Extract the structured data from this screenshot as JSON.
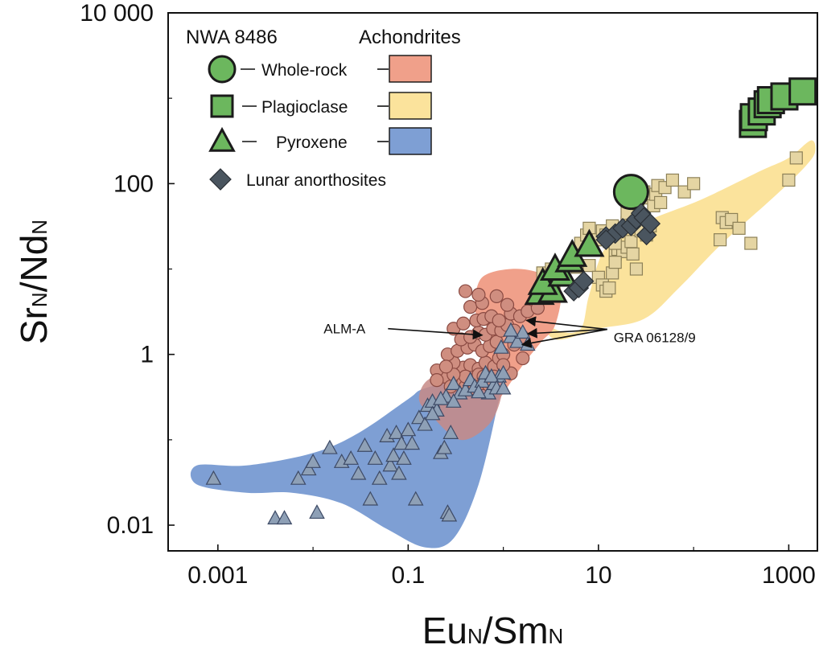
{
  "chart_data": {
    "type": "scatter",
    "x_scale": "log",
    "y_scale": "log",
    "xlim": [
      0.0003,
      2000
    ],
    "ylim": [
      0.005,
      10000
    ],
    "x_ticks": [
      0.001,
      0.1,
      10,
      1000
    ],
    "y_ticks": [
      0.01,
      1,
      100,
      10000
    ],
    "x_tick_labels": [
      "0.001",
      "0.1",
      "10",
      "1000"
    ],
    "y_tick_labels": [
      "0.01",
      "1",
      "100",
      "10 000"
    ],
    "xlabel": {
      "main1": "Eu",
      "sub1": "N",
      "sep": "/Sm",
      "sub2": "N"
    },
    "ylabel": {
      "main1": "Sr",
      "sub1": "N",
      "sep": "/Nd",
      "sub2": "N"
    },
    "legend": {
      "header_sample": "NWA 8486",
      "header_group": "Achondrites",
      "position": "top-left",
      "items": [
        {
          "label": "Whole-rock",
          "marker": "circle",
          "field_color": "#f0a08a"
        },
        {
          "label": "Plagioclase",
          "marker": "square",
          "field_color": "#fbe39c"
        },
        {
          "label": "Pyroxene",
          "marker": "triangle",
          "field_color": "#7e9fd4"
        },
        {
          "label": "Lunar anorthosites",
          "marker": "diamond"
        }
      ]
    },
    "annotations": [
      {
        "label": "ALM-A",
        "x": 0.7,
        "y": 2.0
      },
      {
        "label": "GRA 06128/9",
        "x": 2.6,
        "y": 1.8
      }
    ],
    "colors": {
      "nwa_fill": "#6cb75e",
      "nwa_stroke": "#1b1b1b",
      "lunar_fill": "#4a555f",
      "whole_rock_field": "#f0a08a",
      "plagioclase_field": "#fbe39c",
      "pyroxene_field": "#7e9fd4",
      "achondrite_circle_fill": "#cf8e80",
      "achondrite_circle_stroke": "#8a4a42",
      "achondrite_square_fill": "#e5d5a3",
      "achondrite_square_stroke": "#8d8158",
      "achondrite_triangle_fill": "#8ea0b6",
      "achondrite_triangle_stroke": "#3d4a66"
    },
    "fields": [
      {
        "name": "Plagioclase",
        "color": "#fbe39c",
        "polygon": [
          [
            2.6,
            10
          ],
          [
            2.5,
            3
          ],
          [
            3.8,
            1.9
          ],
          [
            6.5,
            2.0
          ],
          [
            8,
            5
          ],
          [
            12,
            18
          ],
          [
            30,
            35
          ],
          [
            120,
            65
          ],
          [
            500,
            140
          ],
          [
            1000,
            200
          ],
          [
            1700,
            320
          ],
          [
            1900,
            240
          ],
          [
            1500,
            160
          ],
          [
            700,
            70
          ],
          [
            200,
            20
          ],
          [
            70,
            6
          ],
          [
            30,
            2.6
          ],
          [
            10,
            2.0
          ],
          [
            3.5,
            1.5
          ],
          [
            2.6,
            3
          ]
        ]
      },
      {
        "name": "Whole-rock",
        "color": "#f0a08a",
        "polygon": [
          [
            0.5,
            4
          ],
          [
            0.6,
            8
          ],
          [
            1.2,
            10
          ],
          [
            2.4,
            9
          ],
          [
            4,
            6
          ],
          [
            3.5,
            2.2
          ],
          [
            2.5,
            1.4
          ],
          [
            1.6,
            0.75
          ],
          [
            1.0,
            0.35
          ],
          [
            0.7,
            0.2
          ],
          [
            0.35,
            0.12
          ],
          [
            0.17,
            0.13
          ],
          [
            0.14,
            0.24
          ],
          [
            0.2,
            0.42
          ],
          [
            0.45,
            0.6
          ],
          [
            0.62,
            1.0
          ],
          [
            0.75,
            1.8
          ],
          [
            0.55,
            2.6
          ]
        ]
      },
      {
        "name": "Pyroxene",
        "color": "#7e9fd4",
        "polygon": [
          [
            0.0006,
            0.03
          ],
          [
            0.0006,
            0.05
          ],
          [
            0.002,
            0.05
          ],
          [
            0.01,
            0.07
          ],
          [
            0.03,
            0.12
          ],
          [
            0.1,
            0.3
          ],
          [
            0.15,
            0.4
          ],
          [
            0.5,
            0.55
          ],
          [
            1.0,
            0.6
          ],
          [
            0.9,
            0.3
          ],
          [
            0.55,
            0.03
          ],
          [
            0.3,
            0.007
          ],
          [
            0.15,
            0.0055
          ],
          [
            0.06,
            0.009
          ],
          [
            0.02,
            0.018
          ],
          [
            0.006,
            0.024
          ],
          [
            0.002,
            0.024
          ]
        ]
      },
      {
        "name": "Overlap",
        "color": "#c78a86",
        "polygon": [
          [
            0.17,
            0.2
          ],
          [
            0.13,
            0.3
          ],
          [
            0.16,
            0.5
          ],
          [
            0.3,
            0.62
          ],
          [
            0.6,
            0.62
          ],
          [
            0.9,
            0.55
          ],
          [
            0.95,
            0.32
          ],
          [
            0.7,
            0.15
          ],
          [
            0.35,
            0.1
          ]
        ]
      }
    ],
    "series": [
      {
        "name": "Achondrite whole-rock",
        "marker": "circle",
        "points": [
          [
            0.35,
            0.45
          ],
          [
            0.4,
            0.42
          ],
          [
            0.45,
            0.48
          ],
          [
            0.5,
            0.4
          ],
          [
            0.6,
            0.46
          ],
          [
            0.7,
            0.44
          ],
          [
            0.28,
            0.5
          ],
          [
            0.24,
            0.55
          ],
          [
            0.32,
            0.62
          ],
          [
            0.38,
            0.7
          ],
          [
            0.45,
            0.75
          ],
          [
            0.55,
            0.68
          ],
          [
            0.65,
            0.8
          ],
          [
            0.8,
            0.72
          ],
          [
            0.9,
            0.9
          ],
          [
            0.3,
            0.8
          ],
          [
            0.26,
            1.0
          ],
          [
            0.33,
            1.1
          ],
          [
            0.42,
            1.2
          ],
          [
            0.5,
            1.3
          ],
          [
            0.6,
            1.1
          ],
          [
            0.72,
            1.25
          ],
          [
            0.85,
            1.4
          ],
          [
            0.36,
            1.5
          ],
          [
            0.45,
            1.6
          ],
          [
            0.55,
            1.8
          ],
          [
            0.65,
            1.7
          ],
          [
            0.78,
            2.0
          ],
          [
            0.95,
            1.9
          ],
          [
            1.1,
            2.2
          ],
          [
            0.3,
            2.0
          ],
          [
            0.38,
            2.3
          ],
          [
            0.52,
            2.5
          ],
          [
            0.62,
            2.6
          ],
          [
            0.75,
            2.8
          ],
          [
            0.9,
            2.5
          ],
          [
            1.2,
            3
          ],
          [
            1.5,
            2.8
          ],
          [
            1.8,
            3.2
          ],
          [
            2.3,
            3.5
          ],
          [
            0.45,
            3.6
          ],
          [
            0.6,
            4
          ],
          [
            1.1,
            3.8
          ],
          [
            0.85,
            4.8
          ],
          [
            0.55,
            5
          ],
          [
            0.4,
            5.5
          ],
          [
            1.6,
            1.6
          ],
          [
            1.3,
            1.3
          ],
          [
            1.6,
            0.9
          ],
          [
            1.0,
            1.0
          ],
          [
            1.3,
            1.9
          ],
          [
            1.2,
            0.6
          ],
          [
            1.0,
            0.75
          ],
          [
            0.8,
            0.55
          ],
          [
            0.55,
            0.58
          ],
          [
            0.4,
            0.55
          ],
          [
            0.3,
            0.58
          ],
          [
            0.2,
            0.65
          ],
          [
            0.25,
            0.72
          ],
          [
            0.62,
            0.55
          ],
          [
            0.28,
            0.42
          ],
          [
            0.2,
            0.5
          ]
        ]
      },
      {
        "name": "Achondrite plagioclase",
        "marker": "square",
        "points": [
          [
            2.6,
            9
          ],
          [
            3.2,
            10
          ],
          [
            4.2,
            7.5
          ],
          [
            3.4,
            6
          ],
          [
            5.5,
            13
          ],
          [
            5.6,
            12
          ],
          [
            6,
            10.5
          ],
          [
            8,
            11
          ],
          [
            6.5,
            20
          ],
          [
            7.5,
            25
          ],
          [
            8,
            30
          ],
          [
            9.5,
            22
          ],
          [
            10,
            22
          ],
          [
            11,
            28
          ],
          [
            12,
            25
          ],
          [
            10,
            8
          ],
          [
            11,
            6.5
          ],
          [
            12,
            5.5
          ],
          [
            13,
            6
          ],
          [
            14,
            9
          ],
          [
            15,
            15
          ],
          [
            16,
            17
          ],
          [
            18,
            16
          ],
          [
            13,
            21
          ],
          [
            14,
            32
          ],
          [
            15,
            12
          ],
          [
            20,
            18
          ],
          [
            22,
            21
          ],
          [
            23,
            15
          ],
          [
            24,
            38
          ],
          [
            25,
            45
          ],
          [
            24,
            58
          ],
          [
            26,
            62
          ],
          [
            28,
            72
          ],
          [
            30,
            80
          ],
          [
            35,
            68
          ],
          [
            38,
            55
          ],
          [
            40,
            75
          ],
          [
            45,
            60
          ],
          [
            42,
            95
          ],
          [
            50,
            90
          ],
          [
            60,
            110
          ],
          [
            80,
            80
          ],
          [
            100,
            100
          ],
          [
            190,
            22
          ],
          [
            200,
            40
          ],
          [
            220,
            35
          ],
          [
            250,
            38
          ],
          [
            300,
            30
          ],
          [
            400,
            20
          ],
          [
            1000,
            110
          ],
          [
            1200,
            200
          ],
          [
            20,
            35
          ],
          [
            25,
            10
          ],
          [
            30,
            32
          ],
          [
            32,
            25
          ],
          [
            35,
            32
          ],
          [
            28,
            28
          ],
          [
            15,
            20
          ],
          [
            20,
            45
          ]
        ]
      },
      {
        "name": "Achondrite pyroxene",
        "marker": "triangle",
        "points": [
          [
            0.0009,
            0.035
          ],
          [
            0.004,
            0.012
          ],
          [
            0.005,
            0.012
          ],
          [
            0.007,
            0.035
          ],
          [
            0.009,
            0.045
          ],
          [
            0.01,
            0.055
          ],
          [
            0.011,
            0.014
          ],
          [
            0.015,
            0.08
          ],
          [
            0.02,
            0.055
          ],
          [
            0.025,
            0.06
          ],
          [
            0.03,
            0.04
          ],
          [
            0.035,
            0.085
          ],
          [
            0.04,
            0.02
          ],
          [
            0.045,
            0.06
          ],
          [
            0.05,
            0.035
          ],
          [
            0.06,
            0.11
          ],
          [
            0.065,
            0.05
          ],
          [
            0.07,
            0.065
          ],
          [
            0.075,
            0.12
          ],
          [
            0.08,
            0.04
          ],
          [
            0.085,
            0.09
          ],
          [
            0.09,
            0.06
          ],
          [
            0.1,
            0.13
          ],
          [
            0.11,
            0.09
          ],
          [
            0.12,
            0.02
          ],
          [
            0.13,
            0.18
          ],
          [
            0.15,
            0.15
          ],
          [
            0.16,
            0.25
          ],
          [
            0.18,
            0.28
          ],
          [
            0.2,
            0.22
          ],
          [
            0.22,
            0.07
          ],
          [
            0.24,
            0.08
          ],
          [
            0.25,
            0.32
          ],
          [
            0.26,
            0.014
          ],
          [
            0.27,
            0.013
          ],
          [
            0.28,
            0.12
          ],
          [
            0.3,
            0.45
          ],
          [
            0.35,
            0.35
          ],
          [
            0.4,
            0.38
          ],
          [
            0.45,
            0.5
          ],
          [
            0.5,
            0.42
          ],
          [
            0.6,
            0.48
          ],
          [
            0.7,
            0.35
          ],
          [
            0.8,
            0.45
          ],
          [
            0.9,
            0.55
          ],
          [
            1.0,
            0.6
          ],
          [
            0.18,
            0.2
          ],
          [
            0.22,
            0.3
          ],
          [
            0.3,
            0.28
          ],
          [
            0.55,
            0.36
          ],
          [
            0.65,
            0.6
          ],
          [
            0.75,
            0.55
          ],
          [
            0.85,
            0.4
          ],
          [
            1.0,
            0.4
          ],
          [
            1.2,
            1.6
          ],
          [
            1.4,
            1.4
          ],
          [
            1.6,
            1.8
          ],
          [
            1.8,
            1.3
          ],
          [
            0.95,
            1.2
          ],
          [
            1.2,
            1.9
          ]
        ]
      },
      {
        "name": "NWA 8486 whole-rock",
        "marker": "circle",
        "size": "large",
        "points": [
          [
            22,
            80
          ]
        ]
      },
      {
        "name": "NWA 8486 plagioclase",
        "marker": "square",
        "size": "large",
        "points": [
          [
            420,
            500
          ],
          [
            430,
            600
          ],
          [
            520,
            700
          ],
          [
            600,
            850
          ],
          [
            650,
            950
          ],
          [
            900,
            1050
          ],
          [
            1400,
            1200
          ]
        ]
      },
      {
        "name": "NWA 8486 pyroxene",
        "marker": "triangle",
        "size": "large",
        "points": [
          [
            2.4,
            5.2
          ],
          [
            3.3,
            5.5
          ],
          [
            2.6,
            6.8
          ],
          [
            4.2,
            8.5
          ],
          [
            3.5,
            10
          ],
          [
            5.0,
            12.5
          ],
          [
            5.3,
            14.5
          ],
          [
            8.0,
            19
          ]
        ]
      },
      {
        "name": "Lunar anorthosites",
        "marker": "diamond",
        "points": [
          [
            5.5,
            5.5
          ],
          [
            6.2,
            6
          ],
          [
            7.0,
            7.2
          ],
          [
            12,
            24
          ],
          [
            15,
            26
          ],
          [
            18,
            30
          ],
          [
            22,
            32
          ],
          [
            25,
            38
          ],
          [
            28,
            45
          ],
          [
            30,
            40
          ],
          [
            32,
            25
          ],
          [
            35,
            34
          ],
          [
            12,
            22
          ]
        ]
      }
    ]
  }
}
